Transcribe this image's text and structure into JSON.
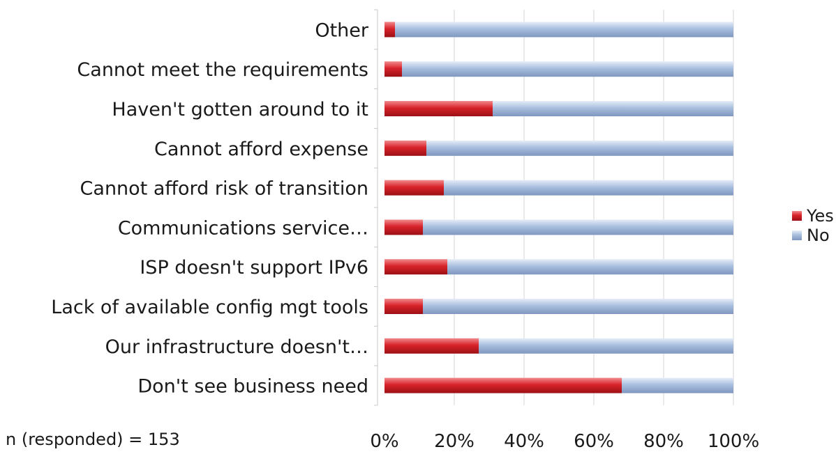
{
  "note": "n (responded) = 153",
  "chart_data": {
    "type": "bar",
    "orientation": "horizontal",
    "stacked": "percent",
    "categories": [
      "Other",
      "Cannot meet the requirements",
      "Haven't gotten around to it",
      "Cannot afford expense",
      "Cannot afford risk of transition",
      "Communications service…",
      "ISP doesn't support IPv6",
      "Lack of available config mgt tools",
      "Our infrastructure doesn't…",
      "Don't see  business need"
    ],
    "series": [
      {
        "name": "Yes",
        "color": "#d8232a",
        "values": [
          3,
          5,
          31,
          12,
          17,
          11,
          18,
          11,
          27,
          68
        ]
      },
      {
        "name": "No",
        "color": "#9db4d8",
        "values": [
          97,
          95,
          69,
          88,
          83,
          89,
          82,
          89,
          73,
          32
        ]
      }
    ],
    "xticks": [
      "0%",
      "20%",
      "40%",
      "60%",
      "80%",
      "100%"
    ],
    "xlim": [
      0,
      100
    ],
    "grid": "vertical",
    "legend": "right"
  }
}
